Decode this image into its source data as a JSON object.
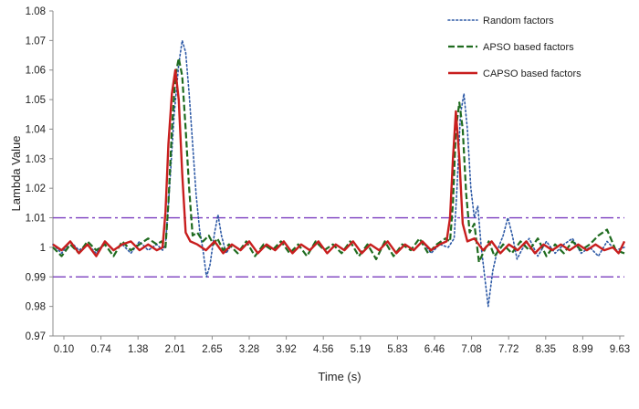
{
  "chart_data": {
    "type": "line",
    "title": "",
    "xlabel": "Time (s)",
    "ylabel": "Lambda Value",
    "xlim": [
      0.1,
      10.0
    ],
    "ylim": [
      0.97,
      1.08
    ],
    "grid": false,
    "legend_position": "top-right",
    "x_tick_labels": [
      "0.10",
      "0.74",
      "1.38",
      "2.01",
      "2.65",
      "3.28",
      "3.92",
      "4.56",
      "5.19",
      "5.83",
      "6.46",
      "7.08",
      "7.72",
      "8.35",
      "8.99",
      "9.63"
    ],
    "y_tick_labels": [
      "0.97",
      "0.98",
      "0.99",
      "1",
      "1.01",
      "1.02",
      "1.03",
      "1.04",
      "1.05",
      "1.06",
      "1.07",
      "1.08"
    ],
    "reference_lines": [
      {
        "name": "upper-limit",
        "y": 1.01,
        "color": "#7b3fbf",
        "style": "dashdot"
      },
      {
        "name": "lower-limit",
        "y": 0.99,
        "color": "#7b3fbf",
        "style": "dashdot"
      }
    ],
    "series": [
      {
        "name": "Random factors",
        "color": "#2e5aa6",
        "style": "dotted",
        "width": 1.6,
        "points": [
          [
            0.1,
            1.001
          ],
          [
            0.25,
            0.998
          ],
          [
            0.4,
            1.002
          ],
          [
            0.55,
            0.999
          ],
          [
            0.7,
            1.001
          ],
          [
            0.85,
            0.998
          ],
          [
            1.0,
            1.002
          ],
          [
            1.15,
            0.999
          ],
          [
            1.3,
            1.001
          ],
          [
            1.45,
            0.998
          ],
          [
            1.6,
            1.002
          ],
          [
            1.75,
            0.999
          ],
          [
            1.9,
            1.001
          ],
          [
            2.0,
            0.999
          ],
          [
            2.05,
            1.001
          ],
          [
            2.12,
            1.02
          ],
          [
            2.2,
            1.045
          ],
          [
            2.28,
            1.062
          ],
          [
            2.34,
            1.07
          ],
          [
            2.4,
            1.066
          ],
          [
            2.46,
            1.052
          ],
          [
            2.52,
            1.035
          ],
          [
            2.58,
            1.018
          ],
          [
            2.64,
            1.006
          ],
          [
            2.7,
            0.999
          ],
          [
            2.76,
            0.99
          ],
          [
            2.82,
            0.994
          ],
          [
            2.9,
            1.005
          ],
          [
            2.96,
            1.011
          ],
          [
            3.02,
            1.004
          ],
          [
            3.1,
            0.998
          ],
          [
            3.2,
            1.001
          ],
          [
            3.35,
            0.999
          ],
          [
            3.5,
            1.002
          ],
          [
            3.65,
            0.998
          ],
          [
            3.8,
            1.001
          ],
          [
            3.95,
            0.999
          ],
          [
            4.1,
            1.002
          ],
          [
            4.25,
            0.998
          ],
          [
            4.4,
            1.001
          ],
          [
            4.55,
            0.999
          ],
          [
            4.7,
            1.002
          ],
          [
            4.85,
            0.998
          ],
          [
            5.0,
            1.001
          ],
          [
            5.15,
            0.999
          ],
          [
            5.3,
            1.002
          ],
          [
            5.45,
            0.998
          ],
          [
            5.6,
            1.001
          ],
          [
            5.75,
            0.999
          ],
          [
            5.9,
            1.002
          ],
          [
            6.05,
            0.998
          ],
          [
            6.2,
            1.001
          ],
          [
            6.35,
            0.999
          ],
          [
            6.5,
            1.002
          ],
          [
            6.65,
            0.998
          ],
          [
            6.8,
            1.001
          ],
          [
            6.95,
            1.0
          ],
          [
            7.05,
            1.003
          ],
          [
            7.1,
            1.02
          ],
          [
            7.16,
            1.045
          ],
          [
            7.22,
            1.052
          ],
          [
            7.28,
            1.04
          ],
          [
            7.34,
            1.02
          ],
          [
            7.4,
            1.01
          ],
          [
            7.46,
            1.014
          ],
          [
            7.52,
            1.0
          ],
          [
            7.58,
            0.99
          ],
          [
            7.64,
            0.98
          ],
          [
            7.72,
            0.992
          ],
          [
            7.8,
            0.999
          ],
          [
            7.9,
            1.004
          ],
          [
            7.98,
            1.01
          ],
          [
            8.06,
            1.004
          ],
          [
            8.14,
            0.996
          ],
          [
            8.22,
            0.999
          ],
          [
            8.35,
            1.003
          ],
          [
            8.5,
            0.997
          ],
          [
            8.65,
            1.002
          ],
          [
            8.8,
            0.998
          ],
          [
            8.95,
            1.001
          ],
          [
            9.1,
            1.003
          ],
          [
            9.25,
            0.998
          ],
          [
            9.4,
            1.0
          ],
          [
            9.55,
            0.997
          ],
          [
            9.7,
            1.002
          ],
          [
            9.85,
            0.999
          ],
          [
            10.0,
            1.0
          ]
        ]
      },
      {
        "name": "APSO based factors",
        "color": "#1f6b1f",
        "style": "dashed",
        "width": 2.2,
        "points": [
          [
            0.1,
            1.0
          ],
          [
            0.25,
            0.997
          ],
          [
            0.4,
            1.001
          ],
          [
            0.55,
            0.998
          ],
          [
            0.7,
            1.002
          ],
          [
            0.85,
            0.999
          ],
          [
            1.0,
            1.001
          ],
          [
            1.15,
            0.997
          ],
          [
            1.3,
            1.002
          ],
          [
            1.45,
            0.999
          ],
          [
            1.6,
            1.001
          ],
          [
            1.75,
            1.003
          ],
          [
            1.9,
            1.001
          ],
          [
            1.98,
            1.002
          ],
          [
            2.05,
            1.0
          ],
          [
            2.1,
            1.015
          ],
          [
            2.16,
            1.04
          ],
          [
            2.22,
            1.058
          ],
          [
            2.28,
            1.064
          ],
          [
            2.34,
            1.058
          ],
          [
            2.4,
            1.04
          ],
          [
            2.46,
            1.02
          ],
          [
            2.52,
            1.004
          ],
          [
            2.6,
            1.005
          ],
          [
            2.7,
            1.002
          ],
          [
            2.8,
            1.004
          ],
          [
            2.88,
            1.001
          ],
          [
            2.95,
            1.003
          ],
          [
            3.05,
            0.999
          ],
          [
            3.15,
            1.001
          ],
          [
            3.3,
            0.998
          ],
          [
            3.45,
            1.002
          ],
          [
            3.6,
            0.997
          ],
          [
            3.75,
            1.001
          ],
          [
            3.9,
            0.999
          ],
          [
            4.05,
            1.002
          ],
          [
            4.2,
            0.998
          ],
          [
            4.35,
            1.001
          ],
          [
            4.5,
            0.997
          ],
          [
            4.65,
            1.002
          ],
          [
            4.8,
            0.999
          ],
          [
            4.95,
            1.001
          ],
          [
            5.1,
            0.998
          ],
          [
            5.25,
            1.002
          ],
          [
            5.4,
            0.997
          ],
          [
            5.55,
            1.001
          ],
          [
            5.7,
            0.996
          ],
          [
            5.85,
            1.002
          ],
          [
            6.0,
            0.997
          ],
          [
            6.15,
            1.001
          ],
          [
            6.3,
            0.999
          ],
          [
            6.45,
            1.003
          ],
          [
            6.6,
            0.998
          ],
          [
            6.75,
            1.001
          ],
          [
            6.9,
            1.003
          ],
          [
            6.98,
            1.002
          ],
          [
            7.03,
            1.015
          ],
          [
            7.08,
            1.04
          ],
          [
            7.14,
            1.049
          ],
          [
            7.2,
            1.04
          ],
          [
            7.26,
            1.018
          ],
          [
            7.32,
            1.005
          ],
          [
            7.4,
            1.008
          ],
          [
            7.48,
            0.995
          ],
          [
            7.55,
            0.998
          ],
          [
            7.65,
            1.002
          ],
          [
            7.75,
            0.997
          ],
          [
            7.9,
            1.001
          ],
          [
            8.05,
            0.998
          ],
          [
            8.2,
            1.002
          ],
          [
            8.35,
            0.999
          ],
          [
            8.5,
            1.003
          ],
          [
            8.65,
            0.997
          ],
          [
            8.8,
            1.001
          ],
          [
            8.95,
            0.998
          ],
          [
            9.1,
            1.002
          ],
          [
            9.25,
            0.999
          ],
          [
            9.4,
            1.001
          ],
          [
            9.55,
            1.004
          ],
          [
            9.7,
            1.006
          ],
          [
            9.85,
            0.999
          ],
          [
            10.0,
            0.998
          ]
        ]
      },
      {
        "name": "CAPSO based factors",
        "color": "#c81e1e",
        "style": "solid",
        "width": 2.4,
        "points": [
          [
            0.1,
            1.001
          ],
          [
            0.25,
            0.999
          ],
          [
            0.4,
            1.002
          ],
          [
            0.55,
            0.998
          ],
          [
            0.7,
            1.001
          ],
          [
            0.85,
            0.997
          ],
          [
            1.0,
            1.002
          ],
          [
            1.15,
            0.999
          ],
          [
            1.3,
            1.001
          ],
          [
            1.45,
            1.002
          ],
          [
            1.6,
            0.999
          ],
          [
            1.75,
            1.001
          ],
          [
            1.9,
            0.999
          ],
          [
            2.0,
            1.0
          ],
          [
            2.05,
            1.012
          ],
          [
            2.1,
            1.035
          ],
          [
            2.16,
            1.052
          ],
          [
            2.22,
            1.06
          ],
          [
            2.28,
            1.05
          ],
          [
            2.34,
            1.025
          ],
          [
            2.4,
            1.005
          ],
          [
            2.48,
            1.002
          ],
          [
            2.6,
            1.001
          ],
          [
            2.75,
            0.999
          ],
          [
            2.9,
            1.002
          ],
          [
            3.05,
            0.998
          ],
          [
            3.2,
            1.001
          ],
          [
            3.35,
            0.999
          ],
          [
            3.5,
            1.002
          ],
          [
            3.65,
            0.998
          ],
          [
            3.8,
            1.001
          ],
          [
            3.95,
            0.999
          ],
          [
            4.1,
            1.002
          ],
          [
            4.25,
            0.998
          ],
          [
            4.4,
            1.001
          ],
          [
            4.55,
            0.999
          ],
          [
            4.7,
            1.002
          ],
          [
            4.85,
            0.998
          ],
          [
            5.0,
            1.001
          ],
          [
            5.15,
            0.999
          ],
          [
            5.3,
            1.002
          ],
          [
            5.45,
            0.998
          ],
          [
            5.6,
            1.001
          ],
          [
            5.75,
            0.999
          ],
          [
            5.9,
            1.002
          ],
          [
            6.05,
            0.998
          ],
          [
            6.2,
            1.001
          ],
          [
            6.35,
            0.999
          ],
          [
            6.5,
            1.002
          ],
          [
            6.65,
            0.999
          ],
          [
            6.8,
            1.001
          ],
          [
            6.92,
            1.002
          ],
          [
            6.98,
            1.01
          ],
          [
            7.03,
            1.03
          ],
          [
            7.08,
            1.046
          ],
          [
            7.14,
            1.03
          ],
          [
            7.2,
            1.008
          ],
          [
            7.28,
            1.002
          ],
          [
            7.4,
            1.003
          ],
          [
            7.55,
            0.999
          ],
          [
            7.7,
            1.002
          ],
          [
            7.85,
            0.998
          ],
          [
            8.0,
            1.001
          ],
          [
            8.15,
            0.999
          ],
          [
            8.3,
            1.002
          ],
          [
            8.45,
            0.998
          ],
          [
            8.6,
            1.001
          ],
          [
            8.75,
            0.999
          ],
          [
            8.9,
            1.001
          ],
          [
            9.05,
            0.999
          ],
          [
            9.2,
            1.001
          ],
          [
            9.35,
            0.999
          ],
          [
            9.5,
            1.001
          ],
          [
            9.65,
            0.999
          ],
          [
            9.8,
            1.0
          ],
          [
            9.9,
            0.998
          ],
          [
            10.0,
            1.002
          ]
        ]
      }
    ]
  }
}
